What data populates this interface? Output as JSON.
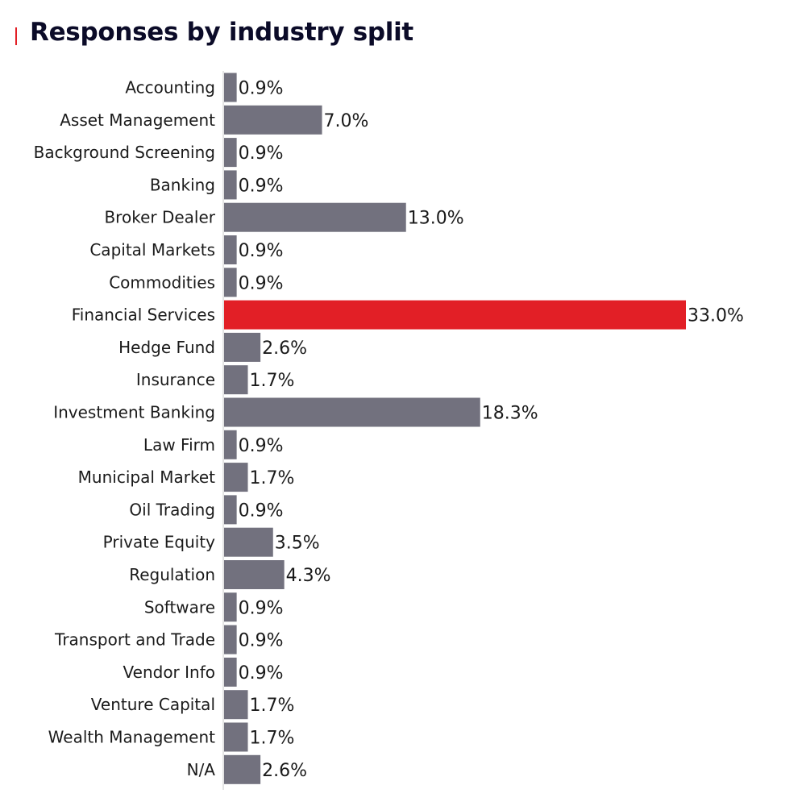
{
  "title": "Responses by industry split",
  "colors": {
    "bar_default": "#72717e",
    "bar_highlight": "#e21f26",
    "title_marker": "#e21f26",
    "axis": "#c8c8c8"
  },
  "chart_data": {
    "type": "bar",
    "orientation": "horizontal",
    "title": "Responses by industry split",
    "xlabel": "",
    "ylabel": "",
    "value_suffix": "%",
    "xlim": [
      0,
      33
    ],
    "grid": false,
    "legend": "none",
    "highlight_category": "Financial Services",
    "categories": [
      "Accounting",
      "Asset Management",
      "Background Screening",
      "Banking",
      "Broker Dealer",
      "Capital Markets",
      "Commodities",
      "Financial Services",
      "Hedge Fund",
      "Insurance",
      "Investment Banking",
      "Law Firm",
      "Municipal Market",
      "Oil Trading",
      "Private Equity",
      "Regulation",
      "Software",
      "Transport and Trade",
      "Vendor Info",
      "Venture Capital",
      "Wealth Management",
      "N/A"
    ],
    "values": [
      0.9,
      7.0,
      0.9,
      0.9,
      13.0,
      0.9,
      0.9,
      33.0,
      2.6,
      1.7,
      18.3,
      0.9,
      1.7,
      0.9,
      3.5,
      4.3,
      0.9,
      0.9,
      0.9,
      1.7,
      1.7,
      2.6
    ],
    "value_labels": [
      "0.9%",
      "7.0%",
      "0.9%",
      "0.9%",
      "13.0%",
      "0.9%",
      "0.9%",
      "33.0%",
      "2.6%",
      "1.7%",
      "18.3%",
      "0.9%",
      "1.7%",
      "0.9%",
      "3.5%",
      "4.3%",
      "0.9%",
      "0.9%",
      "0.9%",
      "1.7%",
      "1.7%",
      "2.6%"
    ]
  }
}
